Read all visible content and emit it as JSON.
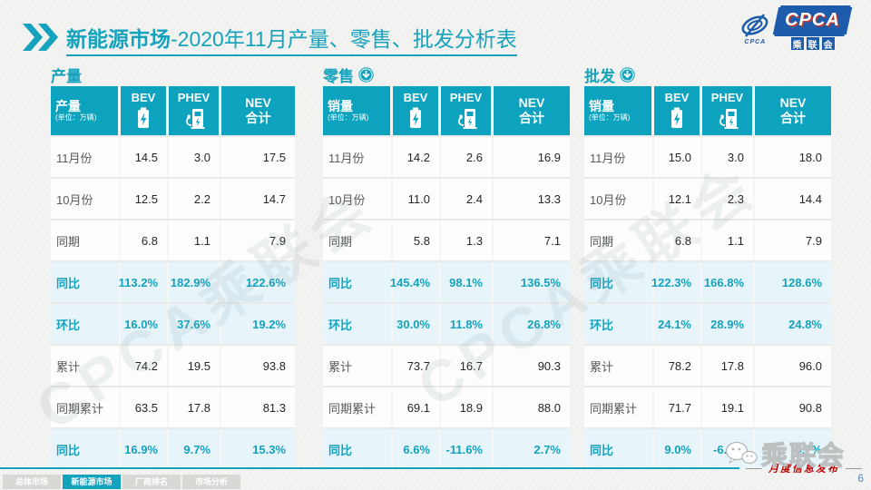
{
  "slide": {
    "title_bold": "新能源市场",
    "title_rest": "-2020年11月产量、零售、批发分析表",
    "page_number": "6"
  },
  "logo": {
    "cpca_label": "CPCA",
    "org_chars": [
      "乘",
      "联",
      "会"
    ],
    "swirl_caption": "CPCA"
  },
  "watermark_text": "CPCA乘联会",
  "tables": [
    {
      "section_title": "产量",
      "arrow_icon": false,
      "header": {
        "label": "产量",
        "unit": "(单位：万辆)",
        "bev": "BEV",
        "phev": "PHEV",
        "nev": [
          "NEV",
          "合计"
        ]
      },
      "rows": [
        {
          "label": "11月份",
          "bev": "14.5",
          "phev": "3.0",
          "nev": "17.5",
          "highlight": false
        },
        {
          "label": "10月份",
          "bev": "12.5",
          "phev": "2.2",
          "nev": "14.7",
          "highlight": false
        },
        {
          "label": "同期",
          "bev": "6.8",
          "phev": "1.1",
          "nev": "7.9",
          "highlight": false
        },
        {
          "label": "同比",
          "bev": "113.2%",
          "phev": "182.9%",
          "nev": "122.6%",
          "highlight": true
        },
        {
          "label": "环比",
          "bev": "16.0%",
          "phev": "37.6%",
          "nev": "19.2%",
          "highlight": true
        },
        {
          "label": "累计",
          "bev": "74.2",
          "phev": "19.5",
          "nev": "93.8",
          "highlight": false
        },
        {
          "label": "同期累计",
          "bev": "63.5",
          "phev": "17.8",
          "nev": "81.3",
          "highlight": false
        },
        {
          "label": "同比",
          "bev": "16.9%",
          "phev": "9.7%",
          "nev": "15.3%",
          "highlight": true
        }
      ]
    },
    {
      "section_title": "零售",
      "arrow_icon": true,
      "header": {
        "label": "销量",
        "unit": "(单位：万辆)",
        "bev": "BEV",
        "phev": "PHEV",
        "nev": [
          "NEV",
          "合计"
        ]
      },
      "rows": [
        {
          "label": "11月份",
          "bev": "14.2",
          "phev": "2.6",
          "nev": "16.9",
          "highlight": false
        },
        {
          "label": "10月份",
          "bev": "11.0",
          "phev": "2.4",
          "nev": "13.3",
          "highlight": false
        },
        {
          "label": "同期",
          "bev": "5.8",
          "phev": "1.3",
          "nev": "7.1",
          "highlight": false
        },
        {
          "label": "同比",
          "bev": "145.4%",
          "phev": "98.1%",
          "nev": "136.5%",
          "highlight": true
        },
        {
          "label": "环比",
          "bev": "30.0%",
          "phev": "11.8%",
          "nev": "26.8%",
          "highlight": true
        },
        {
          "label": "累计",
          "bev": "73.7",
          "phev": "16.7",
          "nev": "90.3",
          "highlight": false
        },
        {
          "label": "同期累计",
          "bev": "69.1",
          "phev": "18.9",
          "nev": "88.0",
          "highlight": false
        },
        {
          "label": "同比",
          "bev": "6.6%",
          "phev": "-11.6%",
          "nev": "2.7%",
          "highlight": true
        }
      ]
    },
    {
      "section_title": "批发",
      "arrow_icon": true,
      "header": {
        "label": "销量",
        "unit": "(单位：万辆)",
        "bev": "BEV",
        "phev": "PHEV",
        "nev": [
          "NEV",
          "合计"
        ]
      },
      "rows": [
        {
          "label": "11月份",
          "bev": "15.0",
          "phev": "3.0",
          "nev": "18.0",
          "highlight": false
        },
        {
          "label": "10月份",
          "bev": "12.1",
          "phev": "2.3",
          "nev": "14.4",
          "highlight": false
        },
        {
          "label": "同期",
          "bev": "6.8",
          "phev": "1.1",
          "nev": "7.9",
          "highlight": false
        },
        {
          "label": "同比",
          "bev": "122.3%",
          "phev": "166.8%",
          "nev": "128.6%",
          "highlight": true
        },
        {
          "label": "环比",
          "bev": "24.1%",
          "phev": "28.9%",
          "nev": "24.8%",
          "highlight": true
        },
        {
          "label": "累计",
          "bev": "78.2",
          "phev": "17.8",
          "nev": "96.0",
          "highlight": false
        },
        {
          "label": "同期累计",
          "bev": "71.7",
          "phev": "19.1",
          "nev": "90.8",
          "highlight": false
        },
        {
          "label": "同比",
          "bev": "9.0%",
          "phev": "-6.8%",
          "nev": "5.7%",
          "highlight": true
        }
      ]
    }
  ],
  "footer": {
    "tabs": [
      {
        "label": "总体市场",
        "active": false
      },
      {
        "label": "新能源市场",
        "active": true
      },
      {
        "label": "厂商排名",
        "active": false
      },
      {
        "label": "市场分析",
        "active": false
      }
    ],
    "publish_label": "月度信息发布",
    "wechat_label": "乘联会"
  },
  "colors": {
    "teal": "#14A2BD",
    "table_header_teal": "#0DA2BD",
    "highlight_row_bg": "#E7F5FB",
    "highlight_text": "#14A2BD",
    "logo_blue": "#1D5CAB",
    "publish_red": "#C00000"
  }
}
